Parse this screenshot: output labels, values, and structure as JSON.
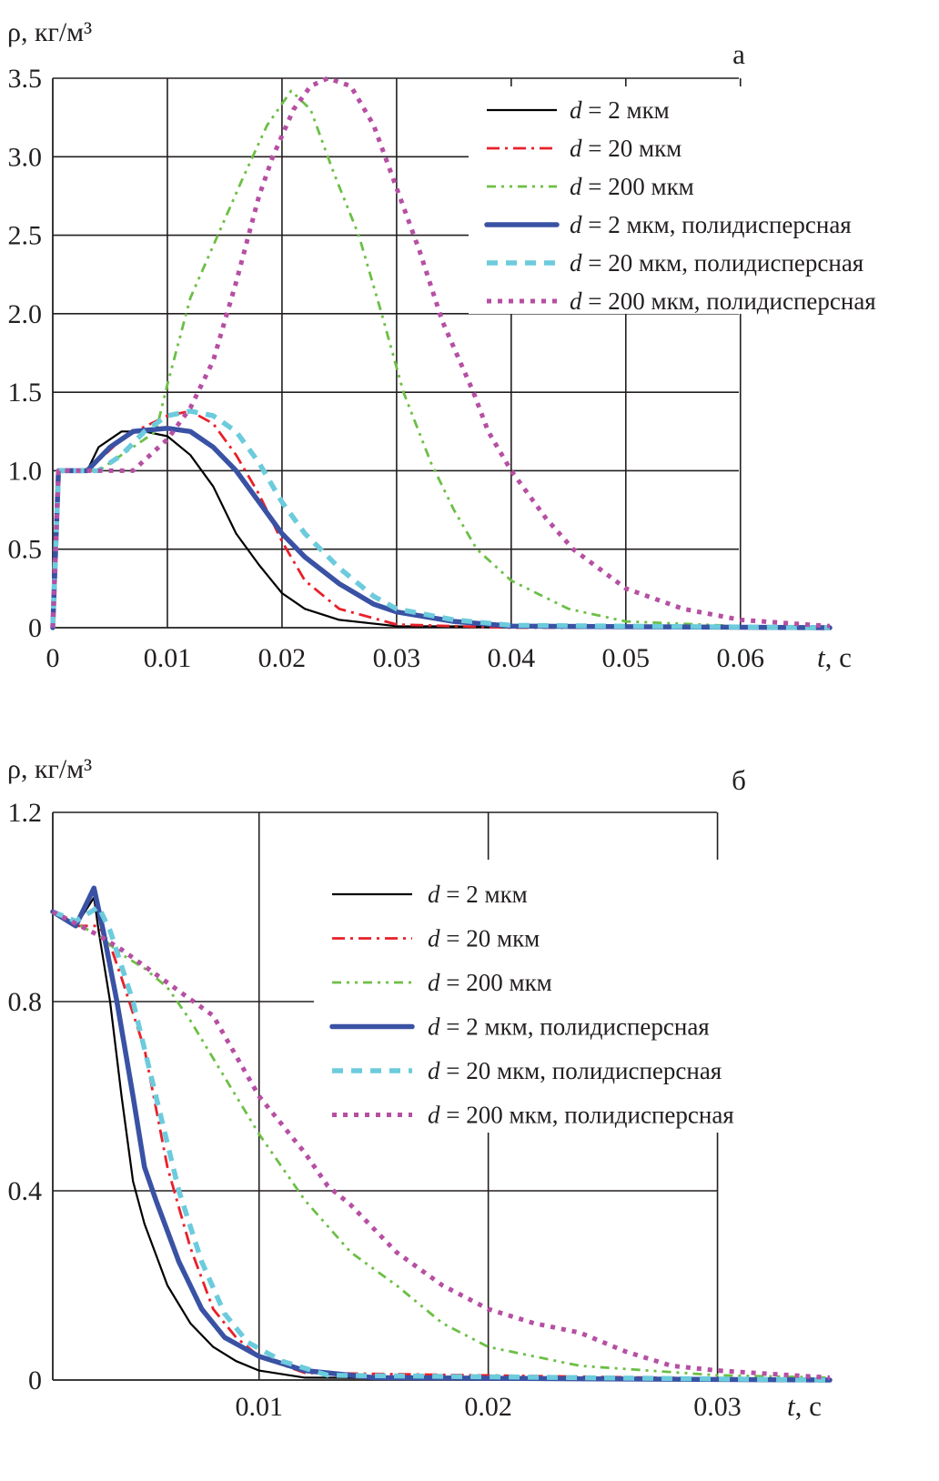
{
  "chart_data": [
    {
      "type": "line",
      "panel_label": "а",
      "ylabel": "ρ, кг/м³",
      "xlabel_var": "t",
      "xlabel_unit": ", с",
      "xlim": [
        0,
        0.0678
      ],
      "ylim": [
        0,
        3.5
      ],
      "grid": true,
      "legend_placement": "top-right",
      "xticks": [
        {
          "v": 0,
          "label": "0"
        },
        {
          "v": 0.01,
          "label": "0.01"
        },
        {
          "v": 0.02,
          "label": "0.02"
        },
        {
          "v": 0.03,
          "label": "0.03"
        },
        {
          "v": 0.04,
          "label": "0.04"
        },
        {
          "v": 0.05,
          "label": "0.05"
        },
        {
          "v": 0.06,
          "label": "0.06"
        }
      ],
      "yticks": [
        {
          "v": 0,
          "label": "0"
        },
        {
          "v": 0.5,
          "label": "0.5"
        },
        {
          "v": 1.0,
          "label": "1.0"
        },
        {
          "v": 1.5,
          "label": "1.5"
        },
        {
          "v": 2.0,
          "label": "2.0"
        },
        {
          "v": 2.5,
          "label": "2.5"
        },
        {
          "v": 3.0,
          "label": "3.0"
        },
        {
          "v": 3.5,
          "label": "3.5"
        }
      ],
      "series": [
        {
          "name": "d = 2 мкм",
          "var": "d",
          "text": " = 2 мкм",
          "color": "#000000",
          "style": "solid-thin",
          "x": [
            0,
            0.0005,
            0.003,
            0.004,
            0.006,
            0.008,
            0.01,
            0.012,
            0.014,
            0.016,
            0.018,
            0.02,
            0.022,
            0.025,
            0.03,
            0.0678
          ],
          "y": [
            0,
            1.0,
            1.0,
            1.15,
            1.25,
            1.25,
            1.22,
            1.1,
            0.9,
            0.6,
            0.4,
            0.22,
            0.12,
            0.05,
            0.01,
            0
          ]
        },
        {
          "name": "d = 20 мкм",
          "var": "d",
          "text": " = 20 мкм",
          "color": "#e8202a",
          "style": "dash-dot",
          "x": [
            0,
            0.0005,
            0.003,
            0.006,
            0.008,
            0.01,
            0.012,
            0.014,
            0.016,
            0.018,
            0.02,
            0.022,
            0.025,
            0.03,
            0.04,
            0.0678
          ],
          "y": [
            0,
            1.0,
            1.0,
            1.2,
            1.28,
            1.35,
            1.38,
            1.3,
            1.1,
            0.85,
            0.55,
            0.3,
            0.12,
            0.02,
            0,
            0
          ]
        },
        {
          "name": "d = 200 мкм",
          "var": "d",
          "text": " = 200 мкм",
          "color": "#6cbf45",
          "style": "dash-dot-dot",
          "x": [
            0,
            0.0005,
            0.004,
            0.007,
            0.009,
            0.01,
            0.012,
            0.0144,
            0.0165,
            0.0187,
            0.0208,
            0.0225,
            0.0245,
            0.0267,
            0.0287,
            0.0306,
            0.033,
            0.035,
            0.037,
            0.04,
            0.045,
            0.05,
            0.06,
            0.0678
          ],
          "y": [
            0,
            1.0,
            1.0,
            1.15,
            1.25,
            1.55,
            2.1,
            2.5,
            2.85,
            3.2,
            3.42,
            3.3,
            2.9,
            2.5,
            2.0,
            1.5,
            1.05,
            0.75,
            0.5,
            0.3,
            0.12,
            0.04,
            0.01,
            0.005
          ]
        },
        {
          "name": "d = 2 мкм, полидисперсная",
          "var": "d",
          "text": " = 2 мкм, полидисперсная",
          "color": "#3a52a4",
          "style": "solid-thick",
          "x": [
            0,
            0.0005,
            0.003,
            0.005,
            0.007,
            0.01,
            0.012,
            0.014,
            0.016,
            0.018,
            0.02,
            0.022,
            0.025,
            0.028,
            0.03,
            0.035,
            0.04,
            0.0678
          ],
          "y": [
            0,
            1.0,
            1.0,
            1.15,
            1.25,
            1.27,
            1.25,
            1.15,
            1.0,
            0.8,
            0.6,
            0.45,
            0.28,
            0.15,
            0.1,
            0.04,
            0.01,
            0
          ]
        },
        {
          "name": "d = 20 мкм, полидисперсная",
          "var": "d",
          "text": " = 20 мкм, полидисперсная",
          "color": "#6ccbdc",
          "style": "dashed-thick",
          "x": [
            0,
            0.0005,
            0.004,
            0.006,
            0.008,
            0.01,
            0.012,
            0.014,
            0.016,
            0.018,
            0.02,
            0.022,
            0.025,
            0.028,
            0.03,
            0.035,
            0.04,
            0.0678
          ],
          "y": [
            0,
            1.0,
            1.0,
            1.1,
            1.25,
            1.35,
            1.38,
            1.35,
            1.25,
            1.05,
            0.8,
            0.6,
            0.38,
            0.2,
            0.12,
            0.05,
            0.015,
            0
          ]
        },
        {
          "name": "d = 200 мкм, полидисперсная",
          "var": "d",
          "text": " = 200 мкм, полидисперсная",
          "color": "#b64fa3",
          "style": "dotted",
          "x": [
            0,
            0.0005,
            0.007,
            0.01,
            0.012,
            0.014,
            0.016,
            0.018,
            0.0192,
            0.021,
            0.0225,
            0.024,
            0.026,
            0.028,
            0.03,
            0.032,
            0.034,
            0.0367,
            0.038,
            0.04,
            0.043,
            0.0454,
            0.05,
            0.055,
            0.06,
            0.0678
          ],
          "y": [
            0,
            1.0,
            1.0,
            1.2,
            1.4,
            1.7,
            2.2,
            2.75,
            3.0,
            3.3,
            3.45,
            3.5,
            3.45,
            3.2,
            2.8,
            2.4,
            1.95,
            1.5,
            1.25,
            1.0,
            0.7,
            0.5,
            0.25,
            0.12,
            0.05,
            0.01
          ]
        }
      ]
    },
    {
      "type": "line",
      "panel_label": "б",
      "ylabel": "ρ, кг/м³",
      "xlabel_var": "t",
      "xlabel_unit": ", с",
      "xlim": [
        0.001,
        0.0349
      ],
      "ylim": [
        0,
        1.2
      ],
      "grid": true,
      "legend_placement": "top-center",
      "xticks": [
        {
          "v": 0.01,
          "label": "0.01"
        },
        {
          "v": 0.02,
          "label": "0.02"
        },
        {
          "v": 0.03,
          "label": "0.03"
        }
      ],
      "yticks": [
        {
          "v": 0,
          "label": "0"
        },
        {
          "v": 0.4,
          "label": "0.4"
        },
        {
          "v": 0.8,
          "label": "0.8"
        },
        {
          "v": 1.2,
          "label": "1.2"
        }
      ],
      "series": [
        {
          "name": "d = 2 мкм",
          "var": "d",
          "text": " = 2 мкм",
          "color": "#000000",
          "style": "solid-thin",
          "x": [
            0.001,
            0.002,
            0.0028,
            0.003,
            0.0035,
            0.004,
            0.0045,
            0.005,
            0.006,
            0.007,
            0.008,
            0.009,
            0.01,
            0.012,
            0.0349
          ],
          "y": [
            0.99,
            0.96,
            1.02,
            0.95,
            0.8,
            0.6,
            0.42,
            0.33,
            0.2,
            0.12,
            0.07,
            0.04,
            0.02,
            0.005,
            0
          ]
        },
        {
          "name": "d = 20 мкм",
          "var": "d",
          "text": " = 20 мкм",
          "color": "#e8202a",
          "style": "dash-dot",
          "x": [
            0.001,
            0.002,
            0.003,
            0.0035,
            0.004,
            0.005,
            0.006,
            0.007,
            0.008,
            0.009,
            0.01,
            0.012,
            0.0349
          ],
          "y": [
            0.99,
            0.96,
            0.96,
            0.92,
            0.85,
            0.7,
            0.45,
            0.28,
            0.15,
            0.09,
            0.05,
            0.015,
            0
          ]
        },
        {
          "name": "d = 200 мкм",
          "var": "d",
          "text": " = 200 мкм",
          "color": "#6cbf45",
          "style": "dash-dot-dot",
          "x": [
            0.001,
            0.003,
            0.004,
            0.005,
            0.006,
            0.007,
            0.008,
            0.009,
            0.01,
            0.012,
            0.014,
            0.016,
            0.018,
            0.02,
            0.024,
            0.03,
            0.0349
          ],
          "y": [
            0.99,
            0.94,
            0.9,
            0.87,
            0.83,
            0.76,
            0.68,
            0.6,
            0.52,
            0.38,
            0.27,
            0.2,
            0.12,
            0.07,
            0.03,
            0.01,
            0.005
          ]
        },
        {
          "name": "d = 2 мкм, полидисперсная",
          "var": "d",
          "text": " = 2 мкм, полидисперсная",
          "color": "#3a52a4",
          "style": "solid-thick",
          "x": [
            0.001,
            0.002,
            0.0028,
            0.0032,
            0.0038,
            0.0045,
            0.005,
            0.0055,
            0.0065,
            0.0075,
            0.0085,
            0.01,
            0.012,
            0.015,
            0.0349
          ],
          "y": [
            0.99,
            0.96,
            1.04,
            0.95,
            0.8,
            0.6,
            0.45,
            0.38,
            0.25,
            0.15,
            0.09,
            0.05,
            0.02,
            0.005,
            0
          ]
        },
        {
          "name": "d = 20 мкм, полидисперсная",
          "var": "d",
          "text": " = 20 мкм, полидисперсная",
          "color": "#6ccbdc",
          "style": "dashed-thick",
          "x": [
            0.001,
            0.002,
            0.003,
            0.0035,
            0.0045,
            0.0055,
            0.0065,
            0.0075,
            0.0085,
            0.0095,
            0.011,
            0.013,
            0.0349
          ],
          "y": [
            0.99,
            0.97,
            1.0,
            0.95,
            0.8,
            0.6,
            0.4,
            0.25,
            0.14,
            0.08,
            0.04,
            0.01,
            0
          ]
        },
        {
          "name": "d = 200 мкм, полидисперсная",
          "var": "d",
          "text": " = 200 мкм, полидисперсная",
          "color": "#b64fa3",
          "style": "dotted",
          "x": [
            0.001,
            0.003,
            0.004,
            0.006,
            0.008,
            0.01,
            0.012,
            0.013,
            0.014,
            0.016,
            0.018,
            0.02,
            0.022,
            0.024,
            0.026,
            0.028,
            0.03,
            0.0349
          ],
          "y": [
            0.99,
            0.94,
            0.91,
            0.84,
            0.77,
            0.6,
            0.48,
            0.41,
            0.37,
            0.27,
            0.2,
            0.15,
            0.12,
            0.1,
            0.06,
            0.03,
            0.02,
            0.005
          ]
        }
      ]
    }
  ]
}
